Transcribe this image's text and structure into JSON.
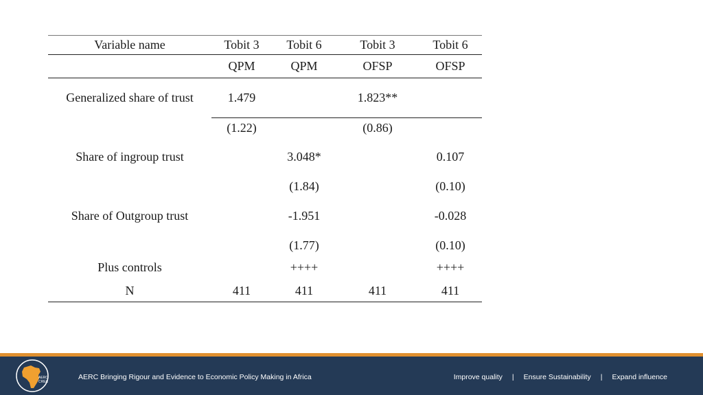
{
  "table": {
    "header": [
      "Variable name",
      "Tobit 3",
      "Tobit 6",
      "Tobit 3",
      "Tobit 6"
    ],
    "subheader": [
      "",
      "QPM",
      "QPM",
      "OFSP",
      "OFSP"
    ],
    "rows": [
      [
        "Generalized share of trust",
        "1.479",
        "",
        "1.823**",
        ""
      ],
      [
        "",
        "(1.22)",
        "",
        "(0.86)",
        ""
      ],
      [
        "Share of ingroup trust",
        "",
        "3.048*",
        "",
        "0.107"
      ],
      [
        "",
        "",
        "(1.84)",
        "",
        "(0.10)"
      ],
      [
        "Share of Outgroup trust",
        "",
        "-1.951",
        "",
        "-0.028"
      ],
      [
        "",
        "",
        "(1.77)",
        "",
        "(0.10)"
      ],
      [
        "Plus controls",
        "",
        "++++",
        "",
        "++++"
      ],
      [
        "N",
        "411",
        "411",
        "411",
        "411"
      ]
    ]
  },
  "footer": {
    "tagline": "AERC Bringing Rigour and Evidence to Economic Policy Making in Africa",
    "links": [
      "Improve quality",
      "Ensure Sustainability",
      "Expand influence"
    ],
    "separator": "|",
    "logo_text": [
      "AERC",
      "CREA"
    ]
  },
  "colors": {
    "footer_bg": "#243a56",
    "footer_stripe": "#e0902f",
    "logo_orange": "#f0a030"
  }
}
